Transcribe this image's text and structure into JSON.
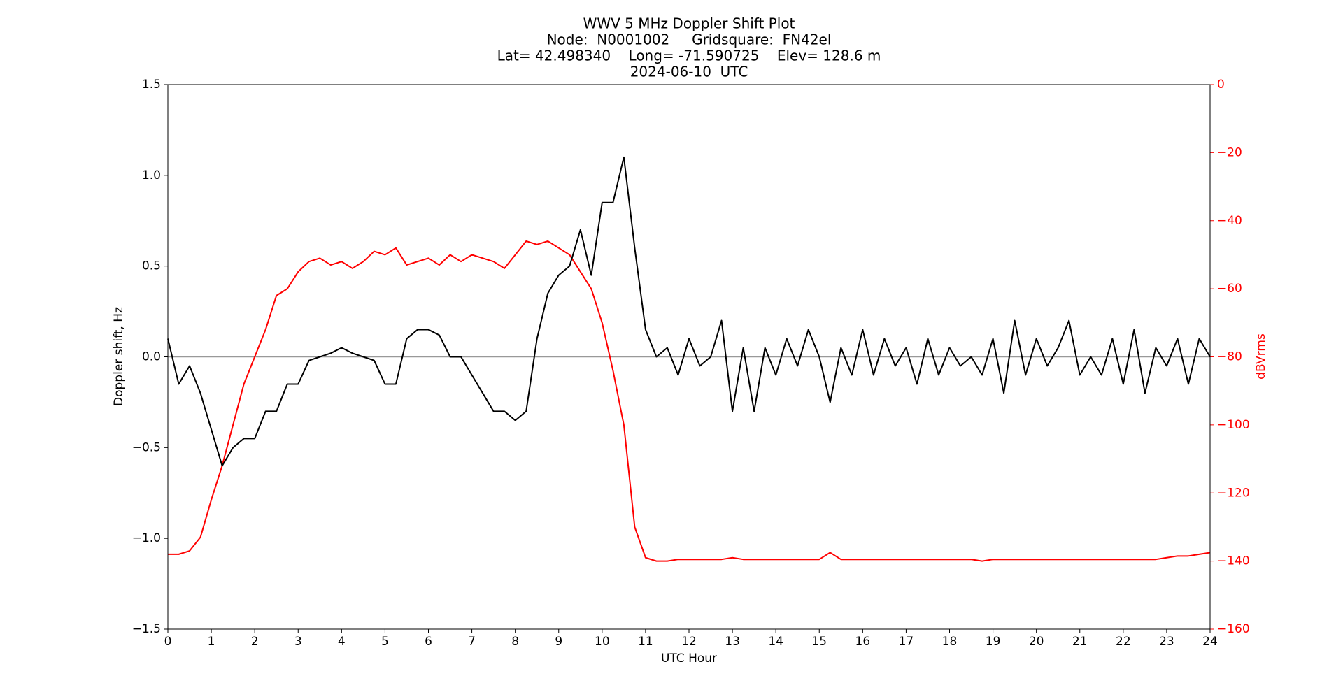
{
  "chart_data": {
    "type": "line",
    "title": "WWV 5 MHz Doppler Shift Plot",
    "subtitle": [
      "Node:  N0001002     Gridsquare:  FN42el",
      "Lat= 42.498340    Long= -71.590725    Elev= 128.6 m",
      "2024-06-10  UTC"
    ],
    "xlabel": "UTC Hour",
    "ylabel": "Doppler shift, Hz",
    "y2label": "dBVrms",
    "y2color": "#ff0000",
    "hline": 0,
    "hline_color": "#999999",
    "x": [
      0,
      0.25,
      0.5,
      0.75,
      1,
      1.25,
      1.5,
      1.75,
      2,
      2.25,
      2.5,
      2.75,
      3,
      3.25,
      3.5,
      3.75,
      4,
      4.25,
      4.5,
      4.75,
      5,
      5.25,
      5.5,
      5.75,
      6,
      6.25,
      6.5,
      6.75,
      7,
      7.25,
      7.5,
      7.75,
      8,
      8.25,
      8.5,
      8.75,
      9,
      9.25,
      9.5,
      9.75,
      10,
      10.25,
      10.5,
      10.75,
      11,
      11.25,
      11.5,
      11.75,
      12,
      12.25,
      12.5,
      12.75,
      13,
      13.25,
      13.5,
      13.75,
      14,
      14.25,
      14.5,
      14.75,
      15,
      15.25,
      15.5,
      15.75,
      16,
      16.25,
      16.5,
      16.75,
      17,
      17.25,
      17.5,
      17.75,
      18,
      18.25,
      18.5,
      18.75,
      19,
      19.25,
      19.5,
      19.75,
      20,
      20.25,
      20.5,
      20.75,
      21,
      21.25,
      21.5,
      21.75,
      22,
      22.25,
      22.5,
      22.75,
      23,
      23.25,
      23.5,
      23.75,
      24
    ],
    "series": [
      {
        "color": "#000000",
        "axis": "y",
        "values": [
          0.1,
          -0.15,
          -0.05,
          -0.2,
          -0.4,
          -0.6,
          -0.5,
          -0.45,
          -0.45,
          -0.3,
          -0.3,
          -0.15,
          -0.15,
          -0.02,
          0.0,
          0.02,
          0.05,
          0.02,
          0.0,
          -0.02,
          -0.15,
          -0.15,
          0.1,
          0.15,
          0.15,
          0.12,
          0.0,
          0.0,
          -0.1,
          -0.2,
          -0.3,
          -0.3,
          -0.35,
          -0.3,
          0.1,
          0.35,
          0.45,
          0.5,
          0.7,
          0.45,
          0.85,
          0.85,
          1.1,
          0.6,
          0.15,
          0.0,
          0.05,
          -0.1,
          0.1,
          -0.05,
          0.0,
          0.2,
          -0.3,
          0.05,
          -0.3,
          0.05,
          -0.1,
          0.1,
          -0.05,
          0.15,
          0.0,
          -0.25,
          0.05,
          -0.1,
          0.15,
          -0.1,
          0.1,
          -0.05,
          0.05,
          -0.15,
          0.1,
          -0.1,
          0.05,
          -0.05,
          0.0,
          -0.1,
          0.1,
          -0.2,
          0.2,
          -0.1,
          0.1,
          -0.05,
          0.05,
          0.2,
          -0.1,
          0.0,
          -0.1,
          0.1,
          -0.15,
          0.15,
          -0.2,
          0.05,
          -0.05,
          0.1,
          -0.15,
          0.1,
          0.0
        ]
      },
      {
        "color": "#ff0000",
        "axis": "y2",
        "values": [
          -138,
          -138,
          -137,
          -133,
          -122,
          -112,
          -100,
          -88,
          -80,
          -72,
          -62,
          -60,
          -55,
          -52,
          -51,
          -53,
          -52,
          -54,
          -52,
          -49,
          -50,
          -48,
          -53,
          -52,
          -51,
          -53,
          -50,
          -52,
          -50,
          -51,
          -52,
          -54,
          -50,
          -46,
          -47,
          -46,
          -48,
          -50,
          -55,
          -60,
          -70,
          -84,
          -100,
          -130,
          -139,
          -140,
          -140,
          -139.5,
          -139.5,
          -139.5,
          -139.5,
          -139.5,
          -139,
          -139.5,
          -139.5,
          -139.5,
          -139.5,
          -139.5,
          -139.5,
          -139.5,
          -139.5,
          -137.5,
          -139.5,
          -139.5,
          -139.5,
          -139.5,
          -139.5,
          -139.5,
          -139.5,
          -139.5,
          -139.5,
          -139.5,
          -139.5,
          -139.5,
          -139.5,
          -140,
          -139.5,
          -139.5,
          -139.5,
          -139.5,
          -139.5,
          -139.5,
          -139.5,
          -139.5,
          -139.5,
          -139.5,
          -139.5,
          -139.5,
          -139.5,
          -139.5,
          -139.5,
          -139.5,
          -139,
          -138.5,
          -138.5,
          -138,
          -137.5
        ]
      }
    ],
    "xlim": [
      0,
      24
    ],
    "xticks": [
      0,
      1,
      2,
      3,
      4,
      5,
      6,
      7,
      8,
      9,
      10,
      11,
      12,
      13,
      14,
      15,
      16,
      17,
      18,
      19,
      20,
      21,
      22,
      23,
      24
    ],
    "ylim": [
      -1.5,
      1.5
    ],
    "yticks": [
      {
        "value": -1.5,
        "label": "−1.5"
      },
      {
        "value": -1.0,
        "label": "−1.0"
      },
      {
        "value": -0.5,
        "label": "−0.5"
      },
      {
        "value": 0,
        "label": "0.0"
      },
      0.5,
      {
        "value": 1.0,
        "label": "1.0"
      },
      1.5
    ],
    "y2lim": [
      -160,
      0
    ],
    "y2ticks": [
      {
        "value": -160,
        "label": "−160"
      },
      {
        "value": -140,
        "label": "−140"
      },
      {
        "value": -120,
        "label": "−120"
      },
      {
        "value": -100,
        "label": "−100"
      },
      {
        "value": -80,
        "label": "−80"
      },
      {
        "value": -60,
        "label": "−60"
      },
      {
        "value": -40,
        "label": "−40"
      },
      {
        "value": -20,
        "label": "−20"
      },
      0
    ]
  }
}
